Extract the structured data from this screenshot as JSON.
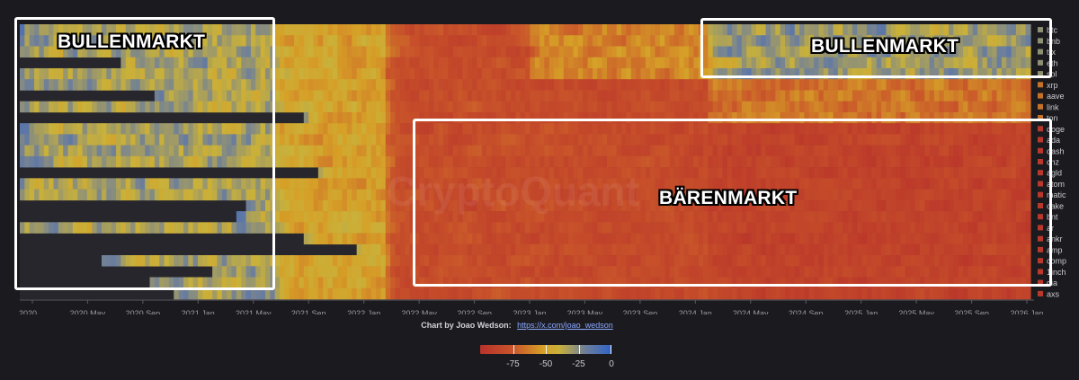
{
  "chart_data": {
    "type": "heatmap",
    "title": "",
    "xlabel": "",
    "ylabel": "",
    "x_ticks": [
      "2020 ...",
      "2020 May",
      "2020 Sep",
      "2021 Jan",
      "2021 May",
      "2021 Sep",
      "2022 Jan",
      "2022 May",
      "2022 Sep",
      "2023 Jan",
      "2023 May",
      "2023 Sep",
      "2024 Jan",
      "2024 May",
      "2024 Sep",
      "2025 Jan",
      "2025 May",
      "2025 Sep",
      "2026 Jan"
    ],
    "rows": [
      {
        "name": "btc",
        "color": "#8f8f73"
      },
      {
        "name": "bnb",
        "color": "#8f8f73"
      },
      {
        "name": "trx",
        "color": "#8f8f73"
      },
      {
        "name": "eth",
        "color": "#8f8f73"
      },
      {
        "name": "sol",
        "color": "#8f8f73"
      },
      {
        "name": "xrp",
        "color": "#c4722a"
      },
      {
        "name": "aave",
        "color": "#c4722a"
      },
      {
        "name": "link",
        "color": "#c4722a"
      },
      {
        "name": "ton",
        "color": "#c4722a"
      },
      {
        "name": "doge",
        "color": "#b8392c"
      },
      {
        "name": "ada",
        "color": "#b8392c"
      },
      {
        "name": "dash",
        "color": "#b8392c"
      },
      {
        "name": "chz",
        "color": "#b8392c"
      },
      {
        "name": "agld",
        "color": "#b8392c"
      },
      {
        "name": "atom",
        "color": "#b8392c"
      },
      {
        "name": "matic",
        "color": "#b8392c"
      },
      {
        "name": "cake",
        "color": "#b8392c"
      },
      {
        "name": "bnt",
        "color": "#b8392c"
      },
      {
        "name": "ar",
        "color": "#b8392c"
      },
      {
        "name": "ankr",
        "color": "#b8392c"
      },
      {
        "name": "amp",
        "color": "#b8392c"
      },
      {
        "name": "comp",
        "color": "#b8392c"
      },
      {
        "name": "1inch",
        "color": "#b8392c"
      },
      {
        "name": "dia",
        "color": "#b8392c"
      },
      {
        "name": "axs",
        "color": "#b8392c"
      }
    ],
    "color_scale": {
      "min": -100,
      "max": 0,
      "ticks": [
        -75,
        -50,
        -25,
        0
      ],
      "tick_labels": [
        "-75",
        "-50",
        "-25",
        "0"
      ]
    },
    "annotations": [
      {
        "label": "BULLENMARKT",
        "from": "2020 Jan",
        "to": "2021 Jun"
      },
      {
        "label": "BULLENMARKT",
        "from": "2024 Mar",
        "to": "2026 Jan"
      },
      {
        "label": "BÄRENMARKT",
        "from": "2022 Jun",
        "to": "2026 Jan"
      }
    ]
  },
  "credit": {
    "text": "Chart by Joao Wedson:",
    "link": "https://x.com/joao_wedson"
  },
  "watermark": "CryptoQuant"
}
